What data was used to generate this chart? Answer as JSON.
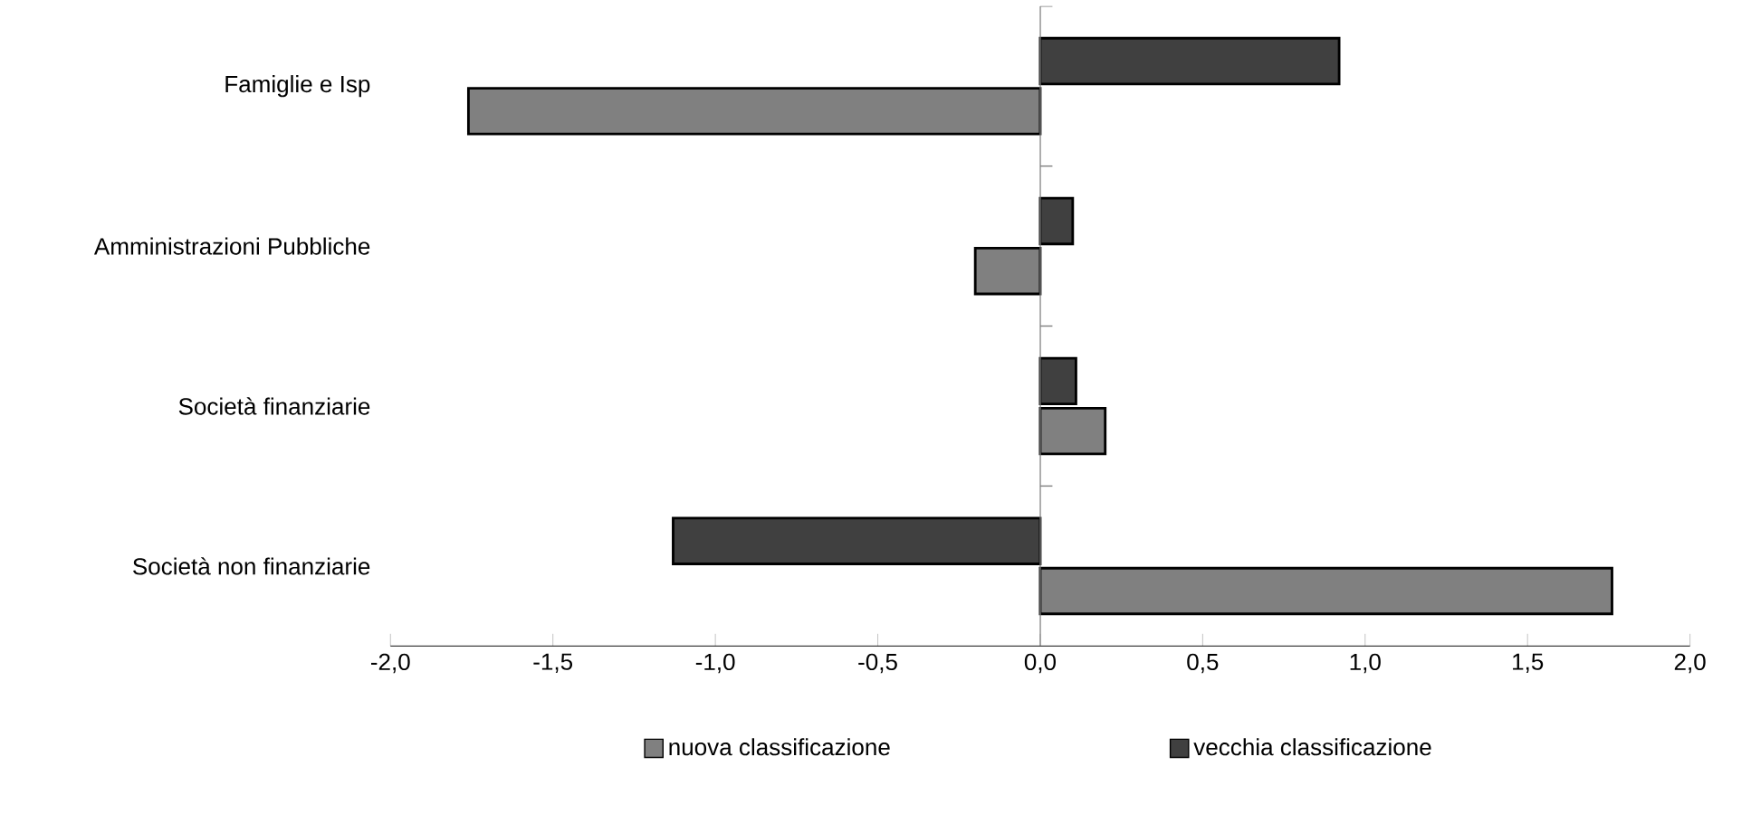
{
  "chart_data": {
    "type": "bar",
    "orientation": "horizontal",
    "categories": [
      "Famiglie e Isp",
      "Amministrazioni Pubbliche",
      "Società finanziarie",
      "Società non finanziarie"
    ],
    "series": [
      {
        "name": "nuova classificazione",
        "color": "#808080",
        "values": [
          -1.76,
          -0.2,
          0.2,
          1.76
        ]
      },
      {
        "name": "vecchia classificazione",
        "color": "#404040",
        "values": [
          0.92,
          0.1,
          0.11,
          -1.13
        ]
      }
    ],
    "xlim": [
      -2,
      2
    ],
    "xticks": [
      {
        "value": -2,
        "label": "-2,0"
      },
      {
        "value": -1.5,
        "label": "-1,5"
      },
      {
        "value": -1,
        "label": "-1,0"
      },
      {
        "value": -0.5,
        "label": "-0,5"
      },
      {
        "value": 0,
        "label": "0,0"
      },
      {
        "value": 0.5,
        "label": "0,5"
      },
      {
        "value": 1,
        "label": "1,0"
      },
      {
        "value": 1.5,
        "label": "1,5"
      },
      {
        "value": 2,
        "label": "2,0"
      }
    ],
    "ref_lines": [
      {
        "axis": "x",
        "value": 0,
        "color": "#808080"
      }
    ],
    "legend": "bottom"
  }
}
